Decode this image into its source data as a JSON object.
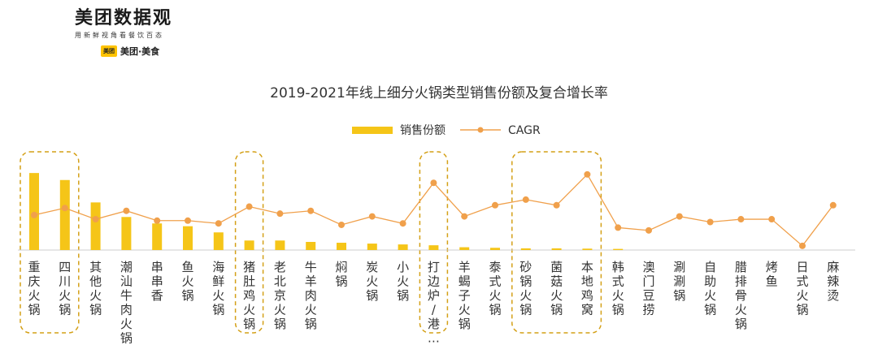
{
  "logo": {
    "main_text": "美团数据观",
    "tagline": "用新鲜视角看餐饮百态",
    "badge": "美团",
    "brand": "美团·美食"
  },
  "colors": {
    "bar": "#f5c518",
    "line": "#f0a04b",
    "dashed_box": "#d4a017",
    "label": "#333333",
    "axis": "#cccccc"
  },
  "chart_data": {
    "type": "bar",
    "title": "2019-2021年线上细分火锅类型销售份额及复合增长率",
    "legend": [
      "销售份额",
      "CAGR"
    ],
    "categories": [
      "重庆火锅",
      "四川火锅",
      "其他火锅",
      "潮汕牛肉火锅",
      "串串香",
      "鱼火锅",
      "海鲜火锅",
      "猪肚鸡火锅",
      "老北京火锅",
      "牛羊肉火锅",
      "焖锅",
      "炭火锅",
      "小火锅",
      "打边炉/港…",
      "羊蝎子火锅",
      "泰式火锅",
      "砂锅火锅",
      "菌菇火锅",
      "本地鸡窝",
      "韩式火锅",
      "澳门豆捞",
      "涮涮锅",
      "自助火锅",
      "腊排骨火锅",
      "烤鱼",
      "日式火锅",
      "麻辣烫"
    ],
    "series": [
      {
        "name": "销售份额",
        "type": "bar",
        "values": [
          27.5,
          25,
          17,
          11.8,
          9.5,
          8.5,
          6.3,
          3.4,
          3.4,
          2.9,
          2.6,
          2.3,
          2.0,
          1.7,
          1.0,
          0.8,
          0.6,
          0.6,
          0.5,
          0.4,
          0,
          0,
          0,
          0,
          0,
          0,
          0
        ]
      },
      {
        "name": "CAGR",
        "type": "line",
        "values": [
          12.5,
          15,
          11,
          14,
          10.5,
          10.5,
          9.5,
          15.5,
          13,
          14,
          9,
          12,
          9.5,
          24,
          12,
          16,
          18,
          16,
          27,
          8,
          7,
          12,
          10,
          11,
          11,
          1.5,
          16
        ]
      }
    ],
    "ylim": [
      0,
      40
    ],
    "highlight_groups": [
      [
        0,
        1
      ],
      [
        7,
        7
      ],
      [
        13,
        13
      ],
      [
        16,
        18
      ]
    ]
  }
}
